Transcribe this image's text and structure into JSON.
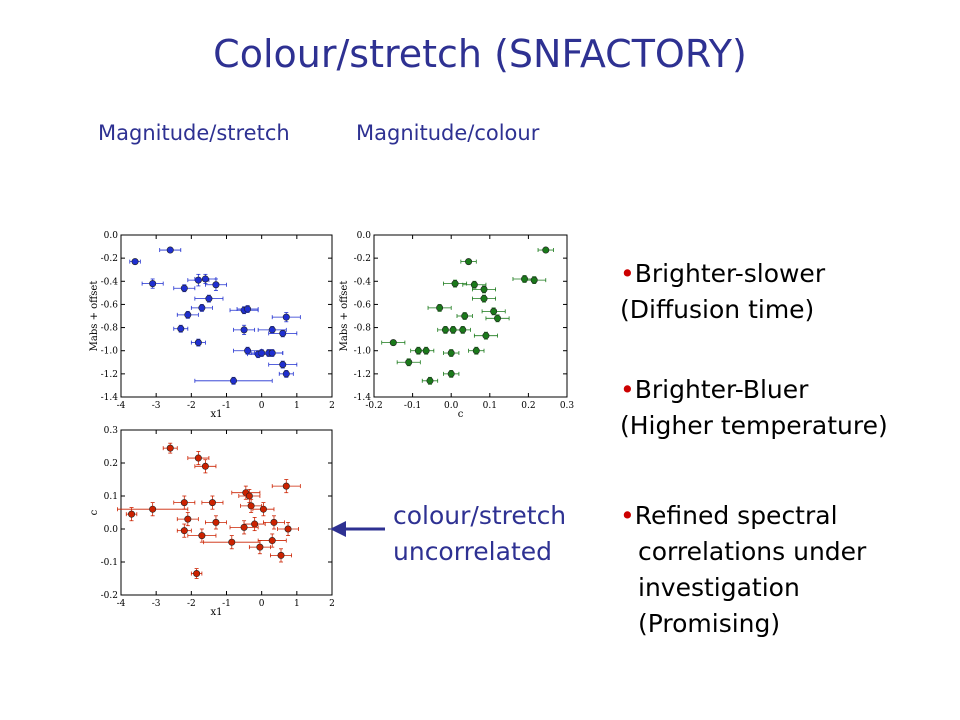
{
  "title": "Colour/stretch (SNFACTORY)",
  "subtitles": {
    "left": "Magnitude/stretch",
    "right": "Magnitude/colour"
  },
  "bullets": [
    {
      "line1": "Brighter-slower",
      "line2": "(Diffusion time)"
    },
    {
      "line1": "Brighter-Bluer",
      "line2": "(Higher temperature)"
    },
    {
      "line1": "Refined spectral",
      "line2": "correlations under",
      "line3": "investigation",
      "line4": "(Promising)"
    }
  ],
  "note": {
    "line1": "colour/stretch",
    "line2": "uncorrelated"
  },
  "colors": {
    "title": "#2e3192",
    "blue": "#1f2fd0",
    "green": "#1a7a1a",
    "red": "#cc2200",
    "bullet": "#cc0000"
  },
  "chart_data": [
    {
      "type": "scatter",
      "xlabel": "x1",
      "ylabel": "Mabs + offset",
      "xlim": [
        -4,
        2
      ],
      "ylim": [
        -1.4,
        0.0
      ],
      "xticks": [
        -4,
        -3,
        -2,
        -1,
        0,
        1,
        2
      ],
      "yticks": [
        0.0,
        -0.2,
        -0.4,
        -0.6,
        -0.8,
        -1.0,
        -1.2,
        -1.4
      ],
      "xtick_labels": [
        "-4",
        "-3",
        "-2",
        "-1",
        "0",
        "1",
        "2"
      ],
      "ytick_labels": [
        "0.0",
        "-0.2",
        "-0.4",
        "-0.6",
        "-0.8",
        "-1.0",
        "-1.2",
        "-1.4"
      ],
      "color": "#1f2fd0",
      "points": [
        {
          "x": -3.6,
          "y": -0.23,
          "xerr": 0.15,
          "yerr": 0.02
        },
        {
          "x": -2.6,
          "y": -0.13,
          "xerr": 0.3,
          "yerr": 0.02
        },
        {
          "x": -3.1,
          "y": -0.42,
          "xerr": 0.3,
          "yerr": 0.04
        },
        {
          "x": -2.2,
          "y": -0.46,
          "xerr": 0.3,
          "yerr": 0.03
        },
        {
          "x": -1.8,
          "y": -0.39,
          "xerr": 0.3,
          "yerr": 0.05
        },
        {
          "x": -1.6,
          "y": -0.38,
          "xerr": 0.3,
          "yerr": 0.04
        },
        {
          "x": -1.3,
          "y": -0.43,
          "xerr": 0.3,
          "yerr": 0.05
        },
        {
          "x": -1.5,
          "y": -0.55,
          "xerr": 0.4,
          "yerr": 0.03
        },
        {
          "x": -1.7,
          "y": -0.63,
          "xerr": 0.3,
          "yerr": 0.03
        },
        {
          "x": -2.1,
          "y": -0.69,
          "xerr": 0.3,
          "yerr": 0.03
        },
        {
          "x": -0.5,
          "y": -0.65,
          "xerr": 0.4,
          "yerr": 0.03
        },
        {
          "x": -0.4,
          "y": -0.64,
          "xerr": 0.3,
          "yerr": 0.03
        },
        {
          "x": 0.7,
          "y": -0.71,
          "xerr": 0.4,
          "yerr": 0.04
        },
        {
          "x": -2.3,
          "y": -0.81,
          "xerr": 0.2,
          "yerr": 0.03
        },
        {
          "x": -0.5,
          "y": -0.82,
          "xerr": 0.3,
          "yerr": 0.04
        },
        {
          "x": 0.3,
          "y": -0.82,
          "xerr": 0.4,
          "yerr": 0.03
        },
        {
          "x": 0.6,
          "y": -0.85,
          "xerr": 0.4,
          "yerr": 0.03
        },
        {
          "x": -1.8,
          "y": -0.93,
          "xerr": 0.2,
          "yerr": 0.03
        },
        {
          "x": -0.4,
          "y": -1.0,
          "xerr": 0.4,
          "yerr": 0.03
        },
        {
          "x": -0.1,
          "y": -1.03,
          "xerr": 0.3,
          "yerr": 0.03
        },
        {
          "x": 0.0,
          "y": -1.02,
          "xerr": 0.3,
          "yerr": 0.03
        },
        {
          "x": 0.2,
          "y": -1.02,
          "xerr": 0.4,
          "yerr": 0.03
        },
        {
          "x": 0.3,
          "y": -1.02,
          "xerr": 0.3,
          "yerr": 0.03
        },
        {
          "x": 0.6,
          "y": -1.12,
          "xerr": 0.4,
          "yerr": 0.03
        },
        {
          "x": 0.7,
          "y": -1.2,
          "xerr": 0.2,
          "yerr": 0.03
        },
        {
          "x": -0.8,
          "y": -1.26,
          "xerr": 1.1,
          "yerr": 0.03
        }
      ]
    },
    {
      "type": "scatter",
      "xlabel": "c",
      "ylabel": "Mabs + offset",
      "xlim": [
        -0.2,
        0.3
      ],
      "ylim": [
        -1.4,
        0.0
      ],
      "xticks": [
        -0.2,
        -0.1,
        0.0,
        0.1,
        0.2,
        0.3
      ],
      "yticks": [
        0.0,
        -0.2,
        -0.4,
        -0.6,
        -0.8,
        -1.0,
        -1.2,
        -1.4
      ],
      "xtick_labels": [
        "-0.2",
        "-0.1",
        "0.0",
        "0.1",
        "0.2",
        "0.3"
      ],
      "ytick_labels": [
        "0.0",
        "-0.2",
        "-0.4",
        "-0.6",
        "-0.8",
        "-1.0",
        "-1.2",
        "-1.4"
      ],
      "color": "#1a7a1a",
      "points": [
        {
          "x": 0.245,
          "y": -0.13,
          "xerr": 0.02,
          "yerr": 0.02
        },
        {
          "x": 0.045,
          "y": -0.23,
          "xerr": 0.02,
          "yerr": 0.02
        },
        {
          "x": 0.19,
          "y": -0.38,
          "xerr": 0.03,
          "yerr": 0.03
        },
        {
          "x": 0.215,
          "y": -0.39,
          "xerr": 0.03,
          "yerr": 0.03
        },
        {
          "x": 0.01,
          "y": -0.42,
          "xerr": 0.03,
          "yerr": 0.03
        },
        {
          "x": 0.06,
          "y": -0.43,
          "xerr": 0.03,
          "yerr": 0.03
        },
        {
          "x": 0.085,
          "y": -0.47,
          "xerr": 0.03,
          "yerr": 0.03
        },
        {
          "x": 0.085,
          "y": -0.55,
          "xerr": 0.03,
          "yerr": 0.03
        },
        {
          "x": -0.03,
          "y": -0.63,
          "xerr": 0.03,
          "yerr": 0.03
        },
        {
          "x": 0.11,
          "y": -0.66,
          "xerr": 0.03,
          "yerr": 0.03
        },
        {
          "x": 0.035,
          "y": -0.7,
          "xerr": 0.02,
          "yerr": 0.03
        },
        {
          "x": 0.12,
          "y": -0.72,
          "xerr": 0.03,
          "yerr": 0.03
        },
        {
          "x": -0.015,
          "y": -0.82,
          "xerr": 0.02,
          "yerr": 0.03
        },
        {
          "x": 0.005,
          "y": -0.82,
          "xerr": 0.02,
          "yerr": 0.03
        },
        {
          "x": 0.03,
          "y": -0.82,
          "xerr": 0.02,
          "yerr": 0.03
        },
        {
          "x": 0.09,
          "y": -0.87,
          "xerr": 0.03,
          "yerr": 0.03
        },
        {
          "x": -0.15,
          "y": -0.93,
          "xerr": 0.03,
          "yerr": 0.02
        },
        {
          "x": -0.085,
          "y": -1.0,
          "xerr": 0.02,
          "yerr": 0.03
        },
        {
          "x": -0.065,
          "y": -1.0,
          "xerr": 0.02,
          "yerr": 0.03
        },
        {
          "x": 0.065,
          "y": -1.0,
          "xerr": 0.02,
          "yerr": 0.03
        },
        {
          "x": 0.0,
          "y": -1.02,
          "xerr": 0.02,
          "yerr": 0.03
        },
        {
          "x": -0.11,
          "y": -1.1,
          "xerr": 0.03,
          "yerr": 0.03
        },
        {
          "x": 0.0,
          "y": -1.2,
          "xerr": 0.02,
          "yerr": 0.03
        },
        {
          "x": -0.055,
          "y": -1.26,
          "xerr": 0.02,
          "yerr": 0.03
        }
      ]
    },
    {
      "type": "scatter",
      "xlabel": "x1",
      "ylabel": "c",
      "xlim": [
        -4,
        2
      ],
      "ylim": [
        -0.2,
        0.3
      ],
      "xticks": [
        -4,
        -3,
        -2,
        -1,
        0,
        1,
        2
      ],
      "yticks": [
        0.3,
        0.2,
        0.1,
        0.0,
        -0.1,
        -0.2
      ],
      "xtick_labels": [
        "-4",
        "-3",
        "-2",
        "-1",
        "0",
        "1",
        "2"
      ],
      "ytick_labels": [
        "0.3",
        "0.2",
        "0.1",
        "0.0",
        "-0.1",
        "-0.2"
      ],
      "color": "#cc2200",
      "points": [
        {
          "x": -2.6,
          "y": 0.245,
          "xerr": 0.2,
          "yerr": 0.015
        },
        {
          "x": -1.8,
          "y": 0.215,
          "xerr": 0.3,
          "yerr": 0.02
        },
        {
          "x": -1.6,
          "y": 0.19,
          "xerr": 0.3,
          "yerr": 0.02
        },
        {
          "x": 0.7,
          "y": 0.13,
          "xerr": 0.4,
          "yerr": 0.02
        },
        {
          "x": -0.45,
          "y": 0.11,
          "xerr": 0.4,
          "yerr": 0.02
        },
        {
          "x": -0.35,
          "y": 0.1,
          "xerr": 0.3,
          "yerr": 0.02
        },
        {
          "x": -2.2,
          "y": 0.08,
          "xerr": 0.3,
          "yerr": 0.02
        },
        {
          "x": -1.4,
          "y": 0.08,
          "xerr": 0.3,
          "yerr": 0.02
        },
        {
          "x": -0.3,
          "y": 0.07,
          "xerr": 0.3,
          "yerr": 0.02
        },
        {
          "x": 0.05,
          "y": 0.06,
          "xerr": 0.3,
          "yerr": 0.02
        },
        {
          "x": -3.1,
          "y": 0.06,
          "xerr": 1.0,
          "yerr": 0.02
        },
        {
          "x": -3.7,
          "y": 0.045,
          "xerr": 0.15,
          "yerr": 0.02
        },
        {
          "x": -2.1,
          "y": 0.03,
          "xerr": 0.3,
          "yerr": 0.02
        },
        {
          "x": -1.3,
          "y": 0.02,
          "xerr": 0.3,
          "yerr": 0.02
        },
        {
          "x": 0.35,
          "y": 0.02,
          "xerr": 0.3,
          "yerr": 0.02
        },
        {
          "x": -0.2,
          "y": 0.015,
          "xerr": 0.3,
          "yerr": 0.02
        },
        {
          "x": -0.5,
          "y": 0.005,
          "xerr": 0.4,
          "yerr": 0.02
        },
        {
          "x": 0.75,
          "y": 0.0,
          "xerr": 0.3,
          "yerr": 0.02
        },
        {
          "x": -2.2,
          "y": -0.005,
          "xerr": 0.2,
          "yerr": 0.02
        },
        {
          "x": -1.7,
          "y": -0.02,
          "xerr": 0.4,
          "yerr": 0.02
        },
        {
          "x": 0.3,
          "y": -0.035,
          "xerr": 0.4,
          "yerr": 0.02
        },
        {
          "x": -0.85,
          "y": -0.04,
          "xerr": 0.8,
          "yerr": 0.02
        },
        {
          "x": -0.05,
          "y": -0.055,
          "xerr": 0.3,
          "yerr": 0.02
        },
        {
          "x": 0.55,
          "y": -0.08,
          "xerr": 0.3,
          "yerr": 0.02
        },
        {
          "x": -1.85,
          "y": -0.135,
          "xerr": 0.15,
          "yerr": 0.015
        }
      ]
    }
  ]
}
